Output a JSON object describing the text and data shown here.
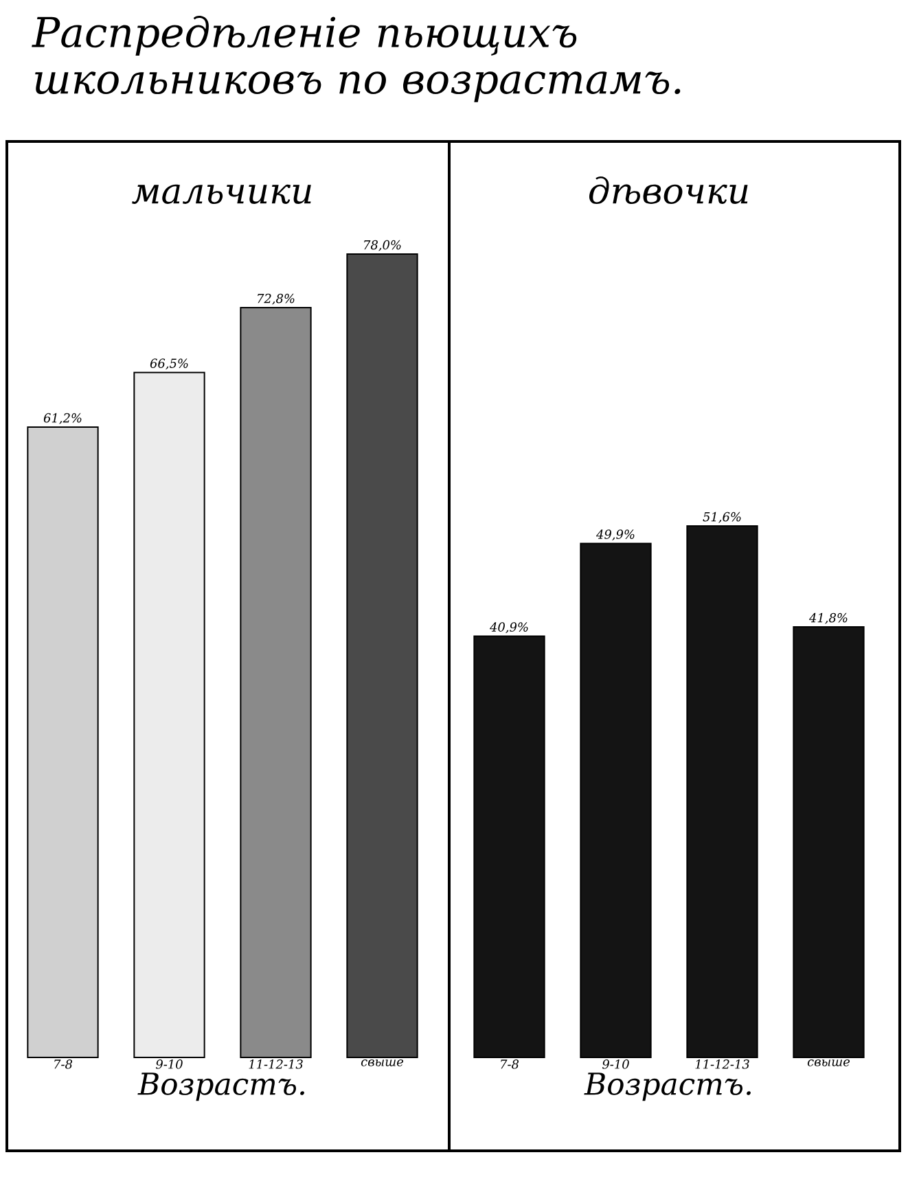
{
  "chart_data": [
    {
      "type": "other",
      "title": "Распредѣленіе пьющихъ школьниковъ по возрастамъ."
    },
    {
      "type": "bar",
      "title": "мальчики",
      "xlabel": "Возрастъ.",
      "categories": [
        "7-8",
        "9-10",
        "11-12-13",
        "свыше"
      ],
      "values": [
        61.2,
        66.5,
        72.8,
        78.0
      ],
      "colors": [
        "#d0d0d0",
        "#ececec",
        "#8a8a8a",
        "#4a4a4a"
      ],
      "value_labels": [
        "61,2%",
        "66,5%",
        "72,8%",
        "78,0%"
      ]
    },
    {
      "type": "bar",
      "title": "дѣвочки",
      "xlabel": "Возрастъ.",
      "categories": [
        "7-8",
        "9-10",
        "11-12-13",
        "свыше"
      ],
      "values": [
        40.9,
        49.9,
        51.6,
        41.8
      ],
      "colors": [
        "#141414",
        "#141414",
        "#141414",
        "#141414"
      ],
      "value_labels": [
        "40,9%",
        "49,9%",
        "51,6%",
        "41,8%"
      ]
    }
  ]
}
